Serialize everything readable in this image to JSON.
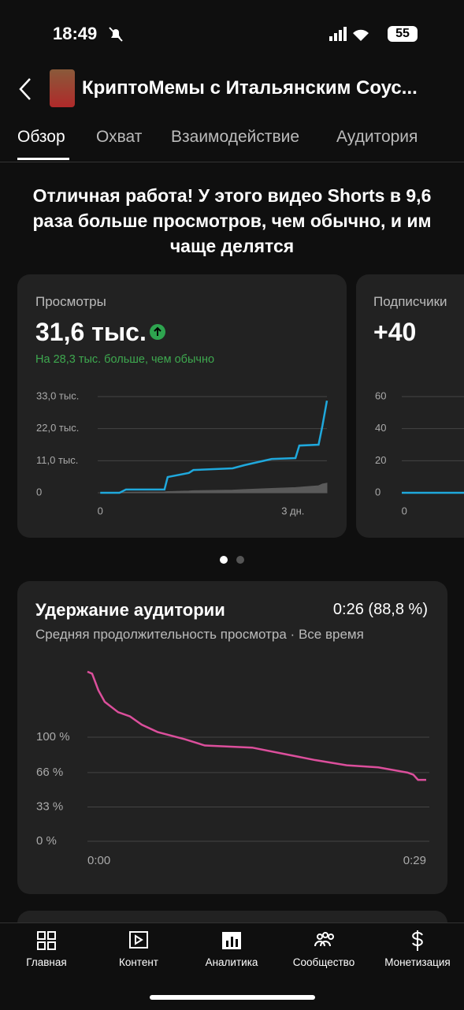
{
  "status_bar": {
    "time": "18:49",
    "battery": "55"
  },
  "header": {
    "title": "КриптоМемы с Итальянским Соус..."
  },
  "tabs": [
    "Обзор",
    "Охват",
    "Взаимодействие",
    "Аудитория"
  ],
  "headline": "Отличная работа! У этого видео Shorts в 9,6 раза больше просмотров, чем обычно, и им чаще делятся",
  "cards": [
    {
      "label": "Просмотры",
      "value": "31,6 тыс.",
      "note": "На 28,3 тыс. больше, чем обычно",
      "chart_data": {
        "type": "line",
        "x": [
          0,
          0.3,
          0.4,
          1.0,
          1.05,
          1.38,
          1.45,
          2.06,
          2.25,
          2.67,
          3.04,
          3.1,
          3.4,
          3.46,
          3.53
        ],
        "series": [
          {
            "type": "area",
            "color": "#5a5a5a",
            "values": [
              0,
              0,
              200,
              300,
              400,
              600,
              700,
              900,
              1100,
              1500,
              1800,
              1900,
              2400,
              3000,
              3300
            ]
          },
          {
            "type": "line",
            "color": "#1fa8dc",
            "values": [
              0,
              0,
              1100,
              1100,
              5400,
              6800,
              7800,
              8400,
              9500,
              11600,
              11900,
              16200,
              16500,
              23000,
              31600
            ]
          }
        ],
        "xlim": [
          -0.04,
          3.53
        ],
        "xticks": [
          0,
          {
            "value": 3,
            "label": "3 дн."
          }
        ],
        "ylim": [
          0,
          33000
        ],
        "yticks": [
          {
            "value": 33000,
            "label": "33,0 тыс."
          },
          {
            "value": 22000,
            "label": "22,0 тыс."
          },
          {
            "value": 11000,
            "label": "11,0 тыс."
          },
          0
        ],
        "grid": true
      }
    },
    {
      "label": "Подписчики",
      "value": "+40",
      "chart_data": {
        "type": "line",
        "x": [
          -0.04,
          3.53
        ],
        "series": [
          {
            "type": "line",
            "color": "#1fa8dc",
            "values": [
              0,
              0
            ]
          }
        ],
        "xlim": [
          -0.04,
          3.53
        ],
        "xticks": [
          0
        ],
        "ylim": [
          0,
          60
        ],
        "yticks": [
          60,
          40,
          20,
          0
        ],
        "grid": true
      }
    }
  ],
  "retention": {
    "title": "Удержание аудитории",
    "value": "0:26 (88,8 %)",
    "subtitle": "Средняя продолжительность просмотра · Все время",
    "chart_data": {
      "type": "line",
      "x": [
        0,
        0.4,
        0.94,
        1.48,
        2.63,
        3.64,
        4.65,
        6,
        8.36,
        10.05,
        14.1,
        16.8,
        19.5,
        22.2,
        24.9,
        27.4,
        27.9,
        28.3,
        29
      ],
      "series": [
        {
          "type": "line",
          "color": "#dc4f9c",
          "values": [
            163,
            161,
            145,
            134,
            124,
            120,
            112,
            105,
            98,
            92,
            90,
            84,
            78,
            73,
            71,
            66,
            64,
            59,
            59
          ]
        }
      ],
      "xlim": [
        0,
        29
      ],
      "xticks": [
        {
          "value": 0,
          "label": "0:00"
        },
        {
          "value": 29,
          "label": "0:29"
        }
      ],
      "ylim": [
        0,
        170
      ],
      "yticks": [
        {
          "value": 100,
          "label": "100 %"
        },
        {
          "value": 66,
          "label": "66 %"
        },
        {
          "value": 33,
          "label": "33 %"
        },
        {
          "value": 0,
          "label": "0 %"
        }
      ],
      "grid": true
    }
  },
  "nav": [
    "Главная",
    "Контент",
    "Аналитика",
    "Сообщество",
    "Монетизация"
  ]
}
